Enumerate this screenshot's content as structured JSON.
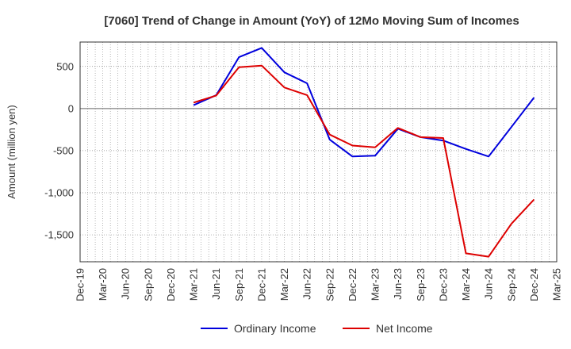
{
  "chart_data": {
    "type": "line",
    "title": "[7060]  Trend of Change in Amount (YoY) of 12Mo Moving Sum of Incomes",
    "xlabel": "",
    "ylabel": "Amount (million yen)",
    "categories": [
      "Dec-19",
      "Mar-20",
      "Jun-20",
      "Sep-20",
      "Dec-20",
      "Mar-21",
      "Jun-21",
      "Sep-21",
      "Dec-21",
      "Mar-22",
      "Jun-22",
      "Sep-22",
      "Dec-22",
      "Mar-23",
      "Jun-23",
      "Sep-23",
      "Dec-23",
      "Mar-24",
      "Jun-24",
      "Sep-24",
      "Dec-24",
      "Mar-25"
    ],
    "yticks": [
      500,
      0,
      -500,
      -1000,
      -1500
    ],
    "ytick_labels": [
      "500",
      "0",
      "-500",
      "-1,000",
      "-1,500"
    ],
    "ylim": [
      -1820,
      790
    ],
    "grid": true,
    "legend_position": "bottom",
    "series": [
      {
        "name": "Ordinary Income",
        "color": "#0000dd",
        "values": [
          null,
          null,
          null,
          null,
          null,
          40,
          160,
          610,
          720,
          430,
          300,
          -370,
          -570,
          -560,
          -240,
          -340,
          -380,
          -480,
          -570,
          -220,
          130,
          null
        ]
      },
      {
        "name": "Net Income",
        "color": "#dd0000",
        "values": [
          null,
          null,
          null,
          null,
          null,
          70,
          155,
          490,
          510,
          250,
          160,
          -310,
          -440,
          -460,
          -230,
          -340,
          -350,
          -1720,
          -1760,
          -1370,
          -1080,
          null
        ]
      }
    ]
  }
}
